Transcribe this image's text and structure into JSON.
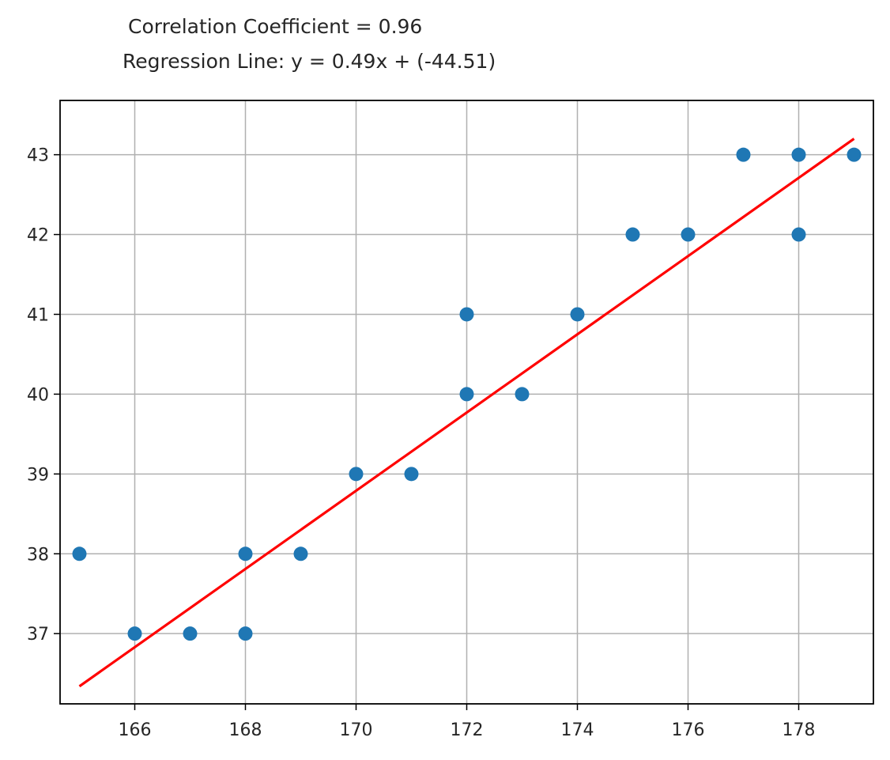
{
  "chart_data": {
    "type": "scatter",
    "title": "",
    "annotations": [
      "Correlation Coefficient = 0.96",
      "Regression Line: y = 0.49x + (-44.51)"
    ],
    "xlabel": "",
    "ylabel": "",
    "xlim": [
      164.65,
      179.35
    ],
    "ylim": [
      36.12,
      43.68
    ],
    "xticks": [
      166,
      168,
      170,
      172,
      174,
      176,
      178
    ],
    "yticks": [
      37,
      38,
      39,
      40,
      41,
      42,
      43
    ],
    "grid": true,
    "colors": {
      "points": "#1f77b4",
      "regression": "#ff0000"
    },
    "series": [
      {
        "points": [
          [
            165,
            38
          ],
          [
            166,
            37
          ],
          [
            167,
            37
          ],
          [
            168,
            38
          ],
          [
            168,
            37
          ],
          [
            169,
            38
          ],
          [
            170,
            39
          ],
          [
            171,
            39
          ],
          [
            172,
            41
          ],
          [
            172,
            40
          ],
          [
            173,
            40
          ],
          [
            174,
            41
          ],
          [
            175,
            42
          ],
          [
            176,
            42
          ],
          [
            177,
            43
          ],
          [
            178,
            43
          ],
          [
            178,
            42
          ],
          [
            179,
            43
          ]
        ]
      }
    ],
    "regression": {
      "slope": 0.49,
      "intercept": -44.51,
      "x_range": [
        165,
        179
      ]
    }
  }
}
